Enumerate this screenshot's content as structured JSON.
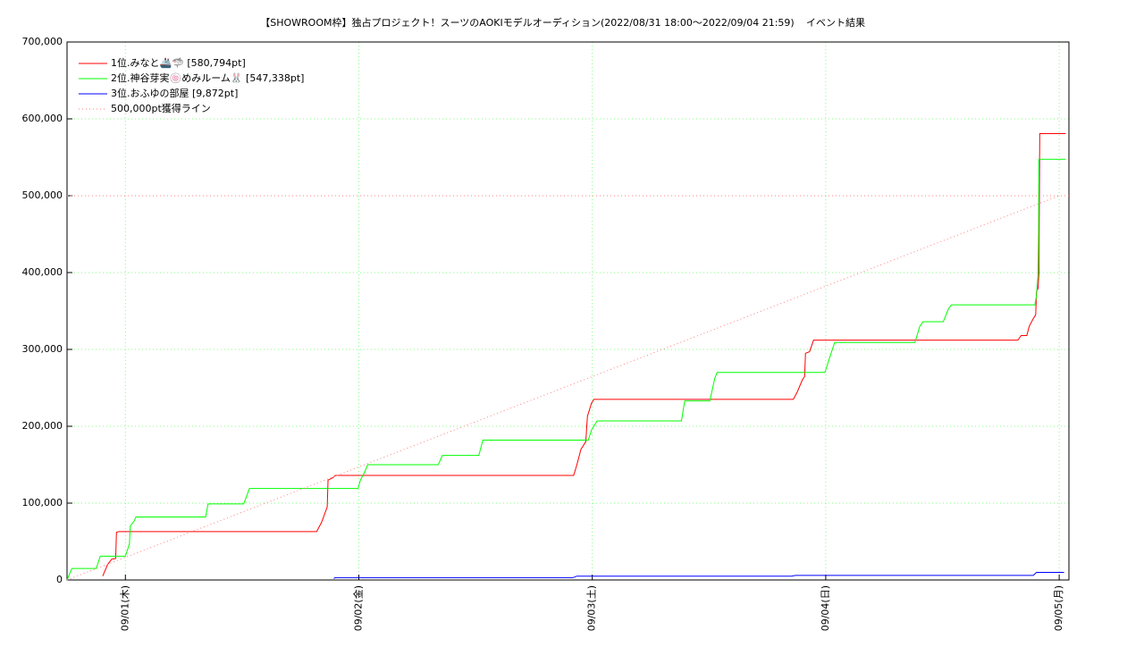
{
  "chart_data": {
    "type": "line",
    "title": "【SHOWROOM枠】独占プロジェクト！スーツのAOKIモデルオーディション(2022/08/31 18:00～2022/09/04 21:59)",
    "subtitle": "イベント結果",
    "xlim": [
      "08/31 18:00",
      "09/05 01:00"
    ],
    "xticks": [
      {
        "value": "09/01 00:00",
        "label": "09/01(木)"
      },
      {
        "value": "09/02 00:00",
        "label": "09/02(金)"
      },
      {
        "value": "09/03 00:00",
        "label": "09/03(土)"
      },
      {
        "value": "09/04 00:00",
        "label": "09/04(日)"
      },
      {
        "value": "09/05 00:00",
        "label": "09/05(月)"
      }
    ],
    "ylim": [
      0,
      700000
    ],
    "yticks": [
      0,
      {
        "value": 100000,
        "label": "100,000"
      },
      {
        "value": 200000,
        "label": "200,000"
      },
      {
        "value": 300000,
        "label": "300,000"
      },
      {
        "value": 400000,
        "label": "400,000"
      },
      {
        "value": 500000,
        "label": "500,000"
      },
      {
        "value": 600000,
        "label": "600,000"
      },
      {
        "value": 700000,
        "label": "700,000"
      }
    ],
    "grid": true,
    "legend": "top-left",
    "series": [
      {
        "name": "1位.みなと🚢🦈 [580,794pt]",
        "color": "#ff0000",
        "dash": "solid",
        "x": [
          "08/31 21:40",
          "08/31 22:10",
          "08/31 22:35",
          "08/31 23:00",
          "08/31 23:05",
          "08/31 23:20",
          "09/01 19:40",
          "09/01 20:10",
          "09/01 20:45",
          "09/01 20:50",
          "09/01 21:20",
          "09/01 21:35",
          "09/02 22:05",
          "09/02 22:25",
          "09/02 22:50",
          "09/02 23:20",
          "09/02 23:30",
          "09/02 23:55",
          "09/03 00:10",
          "09/03 20:40",
          "09/03 21:05",
          "09/03 21:35",
          "09/03 21:50",
          "09/03 21:55",
          "09/03 22:20",
          "09/03 22:45",
          "09/04 19:45",
          "09/04 20:05",
          "09/04 20:40",
          "09/04 20:55",
          "09/04 21:20",
          "09/04 21:35",
          "09/04 21:40",
          "09/04 21:50",
          "09/04 21:55",
          "09/04 22:00",
          "09/05 00:40"
        ],
        "values": [
          5000,
          20000,
          27000,
          28000,
          62000,
          63000,
          63000,
          75000,
          95000,
          130000,
          133000,
          136000,
          136000,
          150000,
          170000,
          180000,
          213000,
          230000,
          235000,
          235000,
          245000,
          260000,
          265000,
          295000,
          297000,
          312000,
          312000,
          318000,
          318000,
          330000,
          340000,
          345000,
          375000,
          380000,
          400000,
          580794,
          580794
        ]
      },
      {
        "name": "2位.神谷芽実🍥めみルーム🐰 [547,338pt]",
        "color": "#00ff00",
        "dash": "solid",
        "x": [
          "08/31 18:00",
          "08/31 18:30",
          "08/31 21:00",
          "08/31 21:25",
          "09/01 00:00",
          "09/01 00:25",
          "09/01 00:30",
          "09/01 00:55",
          "09/01 01:05",
          "09/01 08:15",
          "09/01 08:30",
          "09/01 12:10",
          "09/01 12:45",
          "09/01 23:55",
          "09/02 00:10",
          "09/02 00:35",
          "09/02 00:55",
          "09/02 08:10",
          "09/02 08:35",
          "09/02 12:20",
          "09/02 12:45",
          "09/02 23:35",
          "09/02 23:55",
          "09/03 00:30",
          "09/03 09:10",
          "09/03 09:30",
          "09/03 12:05",
          "09/03 12:35",
          "09/03 12:50",
          "09/03 23:55",
          "09/04 00:25",
          "09/04 00:55",
          "09/04 09:10",
          "09/04 09:40",
          "09/04 10:00",
          "09/04 12:05",
          "09/04 12:35",
          "09/04 12:55",
          "09/04 21:30",
          "09/04 21:40",
          "09/04 21:50",
          "09/04 21:53",
          "09/04 21:55",
          "09/05 00:40"
        ],
        "values": [
          0,
          15000,
          15000,
          31000,
          31000,
          47000,
          70000,
          77000,
          82000,
          82000,
          99000,
          99000,
          119000,
          119000,
          130000,
          140000,
          150000,
          150000,
          162000,
          162000,
          182000,
          182000,
          195000,
          207000,
          207000,
          233000,
          233000,
          262000,
          270000,
          270000,
          290000,
          309000,
          309000,
          330000,
          336000,
          336000,
          352000,
          358000,
          358000,
          370000,
          400000,
          450000,
          547338,
          547338
        ]
      },
      {
        "name": "3位.おふゆの部屋 [9,872pt]",
        "color": "#0000ff",
        "dash": "solid",
        "x": [
          "09/01 21:25",
          "09/01 21:35",
          "09/02 22:00",
          "09/02 22:25",
          "09/03 20:30",
          "09/03 20:55",
          "09/04 21:20",
          "09/04 21:40",
          "09/05 00:30"
        ],
        "values": [
          2000,
          3000,
          3000,
          5000,
          5000,
          6000,
          6000,
          9872,
          9872
        ]
      },
      {
        "name": "500,000pt獲得ライン",
        "color": "#ff8080",
        "dash": "dotted",
        "x": [
          "08/31 18:00",
          "09/05 00:00"
        ],
        "values": [
          0,
          500000
        ],
        "hline": 500000
      }
    ]
  }
}
